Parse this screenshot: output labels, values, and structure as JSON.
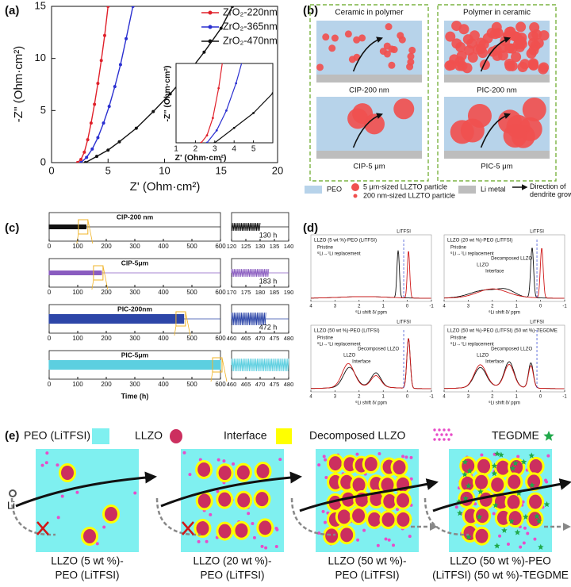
{
  "panel_labels": [
    "(a)",
    "(b)",
    "(c)",
    "(d)",
    "(e)"
  ],
  "panel_a": {
    "x_label": "Z' (Ohm·cm²)",
    "y_label": "-Z'' (Ohm·cm²)",
    "xlim": [
      0,
      20
    ],
    "xticks": [
      0,
      5,
      10,
      15,
      20
    ],
    "ylim": [
      0,
      15
    ],
    "yticks": [
      0,
      5,
      10,
      15
    ],
    "series": [
      {
        "name": "ZrO₂-220nm",
        "color": "#e0202a",
        "x": [
          2.3,
          2.6,
          2.9,
          3.2,
          3.5,
          3.8,
          4.1,
          4.4,
          4.7,
          5.0
        ],
        "y": [
          0,
          0.3,
          1.0,
          2.2,
          3.8,
          5.6,
          7.6,
          9.8,
          12.2,
          15
        ]
      },
      {
        "name": "ZrO₂-365nm",
        "color": "#2a2fd0",
        "x": [
          2.6,
          3.1,
          3.6,
          4.1,
          4.6,
          5.1,
          5.6,
          6.1,
          6.6,
          7.2
        ],
        "y": [
          0,
          0.5,
          1.3,
          2.4,
          3.8,
          5.4,
          7.3,
          9.4,
          11.9,
          15
        ]
      },
      {
        "name": "ZrO₂-470nm",
        "color": "#111111",
        "x": [
          3.0,
          4.0,
          5.0,
          6.0,
          7.5,
          9.0,
          10.5,
          12.0,
          13.5,
          15.0,
          16.0
        ],
        "y": [
          0,
          0.6,
          1.2,
          2.0,
          3.3,
          4.9,
          6.6,
          8.5,
          10.6,
          12.9,
          15
        ]
      }
    ],
    "inset": {
      "x_label": "Z' (Ohm·cm²)",
      "y_label": "-Z'' (Ohm·cm²)",
      "xlim": [
        1,
        6
      ],
      "xticks": [
        1,
        2,
        3,
        4,
        5
      ],
      "ylim": [
        0,
        3.2
      ]
    }
  },
  "panel_b": {
    "headers": [
      "Ceramic in polymer",
      "Polymer in ceramic"
    ],
    "cells": [
      "CIP-200 nm",
      "CIP-5 μm",
      "PIC-200 nm",
      "PIC-5 μm"
    ],
    "legend": [
      "PEO",
      "5 μm-sized LLZTO particle",
      "200 nm-sized LLZTO particle",
      "Li metal",
      "Direction of dendrite growth"
    ]
  },
  "panel_c": {
    "x_label": "Time (h)",
    "xlim": [
      0,
      600
    ],
    "xticks": [
      0,
      100,
      200,
      300,
      400,
      500,
      600
    ],
    "rows": [
      {
        "title": "CIP-200 nm",
        "color": "#111111",
        "zoom_lim": [
          120,
          140
        ],
        "zoom_ticks": [
          120,
          125,
          130,
          135,
          140
        ],
        "duration": {
          "value": 130,
          "label": "130 h"
        }
      },
      {
        "title": "CIP-5μm",
        "color": "#8a5cc0",
        "zoom_lim": [
          170,
          190
        ],
        "zoom_ticks": [
          170,
          175,
          180,
          185,
          190
        ],
        "duration": {
          "value": 183,
          "label": "183 h"
        }
      },
      {
        "title": "PIC-200nm",
        "color": "#2d46a8",
        "zoom_lim": [
          460,
          480
        ],
        "zoom_ticks": [
          460,
          465,
          470,
          475,
          480
        ],
        "duration": {
          "value": 472,
          "label": "472 h"
        }
      },
      {
        "title": "PIC-5μm",
        "color": "#5ccfe0",
        "zoom_lim": [
          460,
          480
        ],
        "zoom_ticks": [
          460,
          465,
          470,
          475,
          480
        ]
      }
    ]
  },
  "panel_d": {
    "x_label": "⁶Li shift δ/ ppm",
    "xlim": [
      4,
      -1
    ],
    "xticks": [
      4,
      3,
      2,
      1,
      0,
      -1
    ],
    "legend": [
      "Pristine",
      "⁶Li→⁷Li replacement"
    ],
    "plots": [
      {
        "title": "LLZO (5 wt %)-PEO (LiTFSI)",
        "labels": [
          "LiTFSI"
        ]
      },
      {
        "title": "LLZO (20 wt %)-PEO (LiTFSI)",
        "labels": [
          "LiTFSI",
          "LLZO",
          "Interface",
          "Decomposed LLZO"
        ]
      },
      {
        "title": "LLZO (50 wt %)-PEO (LiTFSI)",
        "labels": [
          "LiTFSI",
          "LLZO",
          "Interface",
          "Decomposed LLZO"
        ]
      },
      {
        "title": "LLZO (50 wt %)-PEO (LiTFSI) (50 wt %)-TEGDME",
        "labels": [
          "LiTFSI",
          "LLZO",
          "Interface",
          "Decomposed LLZO"
        ]
      }
    ]
  },
  "panel_e": {
    "legend": [
      "PEO (LiTFSI)",
      "LLZO",
      "Interface",
      "Decomposed LLZO",
      "TEGDME"
    ],
    "li_label": "Li",
    "captions": [
      [
        "LLZO (5 wt %)-",
        "PEO (LiTFSI)"
      ],
      [
        "LLZO (20 wt %)-",
        "PEO (LiTFSI)"
      ],
      [
        "LLZO (50 wt %)-",
        "PEO (LiTFSI)"
      ],
      [
        "LLZO (50 wt %)-PEO",
        "(LiTFSI) (50 wt %)-TEGDME"
      ]
    ]
  }
}
